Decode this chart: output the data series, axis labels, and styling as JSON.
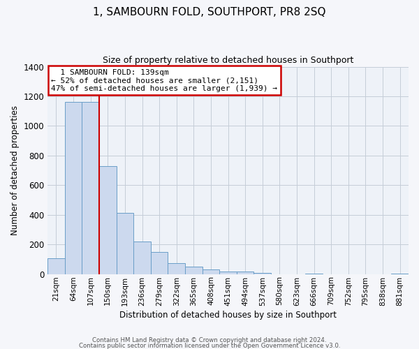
{
  "title": "1, SAMBOURN FOLD, SOUTHPORT, PR8 2SQ",
  "subtitle": "Size of property relative to detached houses in Southport",
  "xlabel": "Distribution of detached houses by size in Southport",
  "ylabel": "Number of detached properties",
  "bin_labels": [
    "21sqm",
    "64sqm",
    "107sqm",
    "150sqm",
    "193sqm",
    "236sqm",
    "279sqm",
    "322sqm",
    "365sqm",
    "408sqm",
    "451sqm",
    "494sqm",
    "537sqm",
    "580sqm",
    "623sqm",
    "666sqm",
    "709sqm",
    "752sqm",
    "795sqm",
    "838sqm",
    "881sqm"
  ],
  "bar_values": [
    107,
    1160,
    1160,
    730,
    415,
    220,
    148,
    73,
    50,
    30,
    18,
    15,
    10,
    0,
    0,
    5,
    0,
    0,
    0,
    0,
    3
  ],
  "bar_color": "#ccd9ee",
  "bar_edge_color": "#6a9ec8",
  "property_label": "1 SAMBOURN FOLD: 139sqm",
  "annotation_line1": "← 52% of detached houses are smaller (2,151)",
  "annotation_line2": "47% of semi-detached houses are larger (1,939) →",
  "vline_color": "#cc0000",
  "vline_position": 2.5,
  "ylim": [
    0,
    1400
  ],
  "yticks": [
    0,
    200,
    400,
    600,
    800,
    1000,
    1200,
    1400
  ],
  "bg_color": "#eef2f8",
  "grid_color": "#c5cdd8",
  "annotation_box_color": "#cc0000",
  "footer_line1": "Contains HM Land Registry data © Crown copyright and database right 2024.",
  "footer_line2": "Contains public sector information licensed under the Open Government Licence v3.0."
}
